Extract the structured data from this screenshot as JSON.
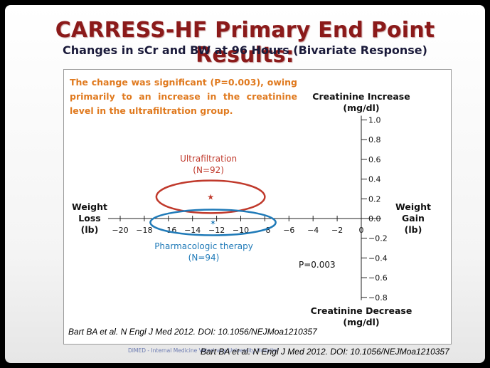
{
  "slide": {
    "title": "CARRESS-HF Primary End Point Results:",
    "subtitle": "Changes in sCr and BW at 96 Hours (Bivariate Response)",
    "note": "The change was significant (P=0.003), owing primarily to an increase in the creatinine level in the ultrafiltration group.",
    "citation": "Bart BA et al. N Engl J Med 2012. DOI: 10.1056/NEJMoa1210357",
    "footer_text": "DIMED - Internal Medicine Veterinary University Hospital",
    "footer_citation": "Bart BA et al. N Engl J Med 2012. DOI: 10.1056/NEJMoa1210357"
  },
  "chart_data": {
    "type": "scatter",
    "x": {
      "range": [
        -21,
        0
      ],
      "ticks": [
        -20,
        -18,
        -16,
        -14,
        -12,
        -10,
        -8,
        -6,
        -4,
        -2,
        0
      ],
      "tick_labels": [
        "−20",
        "−18",
        "−16",
        "−14",
        "−12",
        "−10",
        "−8",
        "−6",
        "−4",
        "−2",
        "0"
      ],
      "left_label": [
        "Weight",
        "Loss",
        "(lb)"
      ],
      "right_label": [
        "Weight",
        "Gain",
        "(lb)"
      ]
    },
    "y": {
      "range": [
        -0.8,
        1.0
      ],
      "ticks": [
        1.0,
        0.8,
        0.6,
        0.4,
        0.2,
        0.0,
        -0.2,
        -0.4,
        -0.6,
        -0.8
      ],
      "tick_labels": [
        "1.0",
        "0.8",
        "0.6",
        "0.4",
        "0.2",
        "0.0",
        "−0.2",
        "−0.4",
        "−0.6",
        "−0.8"
      ],
      "top_label": [
        "Creatinine Increase",
        "(mg/dl)"
      ],
      "bottom_label": [
        "Creatinine Decrease",
        "(mg/dl)"
      ]
    },
    "series": [
      {
        "name": "Ultrafiltration",
        "n_label": "(N=92)",
        "marker": "★",
        "x": -12.5,
        "y": 0.22,
        "ellipse_radius": [
          4.5,
          0.165
        ],
        "color": "#c0392b"
      },
      {
        "name": "Pharmacologic therapy",
        "n_label": "(N=94)",
        "marker": "✶",
        "x": -12.3,
        "y": -0.04,
        "ellipse_radius": [
          5.2,
          0.13
        ],
        "color": "#1f7ab8"
      }
    ],
    "p_value": "P=0.003",
    "colors": {
      "title": "#8b1a1a",
      "note": "#e07a1f",
      "ultrafiltration": "#c0392b",
      "pharmacologic": "#1f7ab8"
    }
  }
}
